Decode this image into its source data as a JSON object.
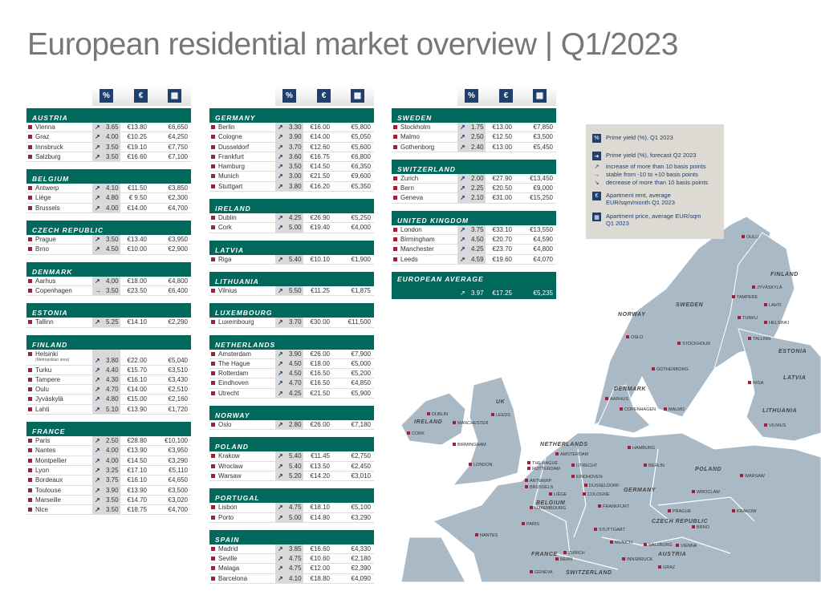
{
  "title": "European residential market overview | Q1/2023",
  "header_icons": {
    "yield": "%",
    "rent": "€",
    "price": "calculator-icon"
  },
  "colors": {
    "section": "#00695c",
    "icon": "#1f3f6e",
    "marker": "#a0203a",
    "map": "#a9b9c6",
    "legend_bg": "#dcdad3"
  },
  "columns": [
    [
      {
        "country": "AUSTRIA",
        "cities": [
          [
            "Vienna",
            "up",
            "3.65",
            "€13.80",
            "€6,650"
          ],
          [
            "Graz",
            "up",
            "4.00",
            "€10.25",
            "€4,250"
          ],
          [
            "Innsbruck",
            "up",
            "3.50",
            "€19.10",
            "€7,750"
          ],
          [
            "Salzburg",
            "up",
            "3.50",
            "€16.60",
            "€7,100"
          ]
        ]
      },
      {
        "country": "BELGIUM",
        "cities": [
          [
            "Antwerp",
            "up",
            "4.10",
            "€11.50",
            "€3,850"
          ],
          [
            "Liège",
            "up",
            "4.80",
            "€ 9.50",
            "€2,300"
          ],
          [
            "Brussels",
            "up",
            "4.00",
            "€14.00",
            "€4,700"
          ]
        ]
      },
      {
        "country": "CZECH REPUBLIC",
        "cities": [
          [
            "Prague",
            "up",
            "3.50",
            "€13.40",
            "€3,950"
          ],
          [
            "Brno",
            "up",
            "4.50",
            "€10.00",
            "€2,900"
          ]
        ]
      },
      {
        "country": "DENMARK",
        "cities": [
          [
            "Aarhus",
            "up",
            "4.00",
            "€18.00",
            "€4,800"
          ],
          [
            "Copenhagen",
            "right",
            "3.50",
            "€23.50",
            "€6,400"
          ]
        ]
      },
      {
        "country": "ESTONIA",
        "cities": [
          [
            "Tallinn",
            "up",
            "5.25",
            "€14.10",
            "€2,290"
          ]
        ]
      },
      {
        "country": "FINLAND",
        "cities": [
          [
            "Helsinki",
            "up",
            "3.80",
            "€22.00",
            "€5,040",
            "(Metropolitan area)"
          ],
          [
            "Turku",
            "up",
            "4.40",
            "€15.70",
            "€3,510"
          ],
          [
            "Tampere",
            "up",
            "4.30",
            "€16.10",
            "€3,430"
          ],
          [
            "Oulu",
            "up",
            "4.70",
            "€14.00",
            "€2,510"
          ],
          [
            "Jyväskylä",
            "up",
            "4.80",
            "€15.00",
            "€2,160"
          ],
          [
            "Lahti",
            "up",
            "5.10",
            "€13.90",
            "€1,720"
          ]
        ]
      },
      {
        "country": "FRANCE",
        "cities": [
          [
            "Paris",
            "up",
            "2.50",
            "€28.80",
            "€10,100"
          ],
          [
            "Nantes",
            "up",
            "4.00",
            "€13.90",
            "€3,950"
          ],
          [
            "Montpellier",
            "up",
            "4.00",
            "€14.50",
            "€3,290"
          ],
          [
            "Lyon",
            "up",
            "3.25",
            "€17.10",
            "€5,110"
          ],
          [
            "Bordeaux",
            "up",
            "3.75",
            "€16.10",
            "€4,650"
          ],
          [
            "Toulouse",
            "up",
            "3.90",
            "€13.90",
            "€3,500"
          ],
          [
            "Marseille",
            "up",
            "3.50",
            "€14.70",
            "€3,020"
          ],
          [
            "Nice",
            "up",
            "3.50",
            "€18.75",
            "€4,700"
          ]
        ]
      }
    ],
    [
      {
        "country": "GERMANY",
        "cities": [
          [
            "Berlin",
            "up",
            "3.30",
            "€16.00",
            "€5,800"
          ],
          [
            "Cologne",
            "up",
            "3.90",
            "€14.00",
            "€5,050"
          ],
          [
            "Dusseldorf",
            "up",
            "3.70",
            "€12.60",
            "€5,600"
          ],
          [
            "Frankfurt",
            "up",
            "3.60",
            "€16.75",
            "€6,800"
          ],
          [
            "Hamburg",
            "up",
            "3.50",
            "€14.50",
            "€6,350"
          ],
          [
            "Munich",
            "up",
            "3.00",
            "€21.50",
            "€9,600"
          ],
          [
            "Stuttgart",
            "up",
            "3.80",
            "€16.20",
            "€5,350"
          ]
        ]
      },
      {
        "country": "IRELAND",
        "cities": [
          [
            "Dublin",
            "up",
            "4.25",
            "€26.90",
            "€5,250"
          ],
          [
            "Cork",
            "up",
            "5.00",
            "€19.40",
            "€4,000"
          ]
        ]
      },
      {
        "country": "LATVIA",
        "cities": [
          [
            "Riga",
            "up",
            "5.40",
            "€10.10",
            "€1,900"
          ]
        ]
      },
      {
        "country": "LITHUANIA",
        "cities": [
          [
            "Vilnius",
            "up",
            "5.50",
            "€11.25",
            "€1,875"
          ]
        ]
      },
      {
        "country": "LUXEMBOURG",
        "cities": [
          [
            "Luxembourg",
            "up",
            "3.70",
            "€30.00",
            "€11,500"
          ]
        ]
      },
      {
        "country": "NETHERLANDS",
        "cities": [
          [
            "Amsterdam",
            "up",
            "3.90",
            "€26.00",
            "€7,900"
          ],
          [
            "The Hague",
            "up",
            "4.50",
            "€18.00",
            "€5,000"
          ],
          [
            "Rotterdam",
            "up",
            "4.50",
            "€16.50",
            "€5,200"
          ],
          [
            "Eindhoven",
            "up",
            "4.70",
            "€16.50",
            "€4,850"
          ],
          [
            "Utrecht",
            "up",
            "4.25",
            "€21.50",
            "€5,900"
          ]
        ]
      },
      {
        "country": "NORWAY",
        "cities": [
          [
            "Oslo",
            "up",
            "2.80",
            "€26.00",
            "€7,180"
          ]
        ]
      },
      {
        "country": "POLAND",
        "cities": [
          [
            "Krakow",
            "up",
            "5.40",
            "€11.45",
            "€2,750"
          ],
          [
            "Wroclaw",
            "up",
            "5.40",
            "€13.50",
            "€2,450"
          ],
          [
            "Warsaw",
            "up",
            "5.20",
            "€14.20",
            "€3,010"
          ]
        ]
      },
      {
        "country": "PORTUGAL",
        "cities": [
          [
            "Lisbon",
            "up",
            "4.75",
            "€18.10",
            "€5,100"
          ],
          [
            "Porto",
            "up",
            "5.00",
            "€14.80",
            "€3,290"
          ]
        ]
      },
      {
        "country": "SPAIN",
        "cities": [
          [
            "Madrid",
            "up",
            "3.85",
            "€16.60",
            "€4,330"
          ],
          [
            "Seville",
            "up",
            "4.75",
            "€10.60",
            "€2,180"
          ],
          [
            "Malaga",
            "up",
            "4.75",
            "€12.00",
            "€2,390"
          ],
          [
            "Barcelona",
            "up",
            "4.10",
            "€18.80",
            "€4,090"
          ]
        ]
      }
    ],
    [
      {
        "country": "SWEDEN",
        "cities": [
          [
            "Stockholm",
            "up",
            "1.75",
            "€13.00",
            "€7,850"
          ],
          [
            "Malmo",
            "up",
            "2.50",
            "€12.50",
            "€3,500"
          ],
          [
            "Gothenborg",
            "up",
            "2.40",
            "€13.00",
            "€5,450"
          ]
        ]
      },
      {
        "country": "SWITZERLAND",
        "cities": [
          [
            "Zurich",
            "up",
            "2.00",
            "€27.90",
            "€13,450"
          ],
          [
            "Bern",
            "up",
            "2.25",
            "€20.50",
            "€9,000"
          ],
          [
            "Geneva",
            "up",
            "2.10",
            "€31.00",
            "€15,250"
          ]
        ]
      },
      {
        "country": "UNITED KINGDOM",
        "cities": [
          [
            "London",
            "up",
            "3.75",
            "€33.10",
            "€13,550"
          ],
          [
            "Birmingham",
            "up",
            "4.50",
            "€20.70",
            "€4,590"
          ],
          [
            "Manchester",
            "up",
            "4.25",
            "€23.70",
            "€4,800"
          ],
          [
            "Leeds",
            "up",
            "4.59",
            "€19.60",
            "€4,070"
          ]
        ]
      }
    ]
  ],
  "average": {
    "label": "EUROPEAN AVERAGE",
    "trend": "up",
    "yield": "3.97",
    "rent": "€17.25",
    "price": "€5,235"
  },
  "legend": {
    "yield": "Prime yield (%), Q1 2023",
    "forecast": "Prime yield (%), forecast Q2 2023",
    "increase": "increase of more than 10 basis points",
    "stable": "stable from -10 to +10 basis points",
    "decrease": "decrease of more than 10 basis points",
    "rent": "Apartment rent, average EUR/sqm/month Q1 2023",
    "price": "Apartment price, average EUR/sqm Q1 2023"
  },
  "map": {
    "countries": [
      "FINLAND",
      "NORWAY",
      "SWEDEN",
      "ESTONIA",
      "LATVIA",
      "LITHUANIA",
      "DENMARK",
      "UK",
      "IRELAND",
      "NETHERLANDS",
      "GERMANY",
      "POLAND",
      "BELGIUM",
      "CZECH REPUBLIC",
      "FRANCE",
      "AUSTRIA",
      "SWITZERLAND"
    ],
    "cities": [
      "OULU",
      "JYVÄSKYLÄ",
      "TAMPERE",
      "LAHTI",
      "TURKU",
      "HELSINKI",
      "TALLINN",
      "RIGA",
      "VILNIUS",
      "OSLO",
      "STOCKHOLM",
      "GOTHENBORG",
      "AARHUS",
      "COPENHAGEN",
      "MALMO",
      "DUBLIN",
      "LEEDS",
      "MANCHESTER",
      "CORK",
      "BIRMINGHAM",
      "LONDON",
      "AMSTERDAM",
      "THE HAGUE",
      "ROTTERDAM",
      "UTRECHT",
      "HAMBURG",
      "BERLIN",
      "WARSAW",
      "EINDHOVEN",
      "ANTWERP",
      "BRUSSELS",
      "DUSSELDORF",
      "WROCLAW",
      "LIÈGE",
      "COLOGNE",
      "LUXEMBOURG",
      "FRANKFURT",
      "KRAKOW",
      "PRAGUE",
      "BRNO",
      "PARIS",
      "STUTTGART",
      "NANTES",
      "MUNICH",
      "SALZBURG",
      "VIENNA",
      "ZURICH",
      "BERN",
      "INNSBRUCK",
      "GRAZ",
      "GENEVA"
    ]
  }
}
